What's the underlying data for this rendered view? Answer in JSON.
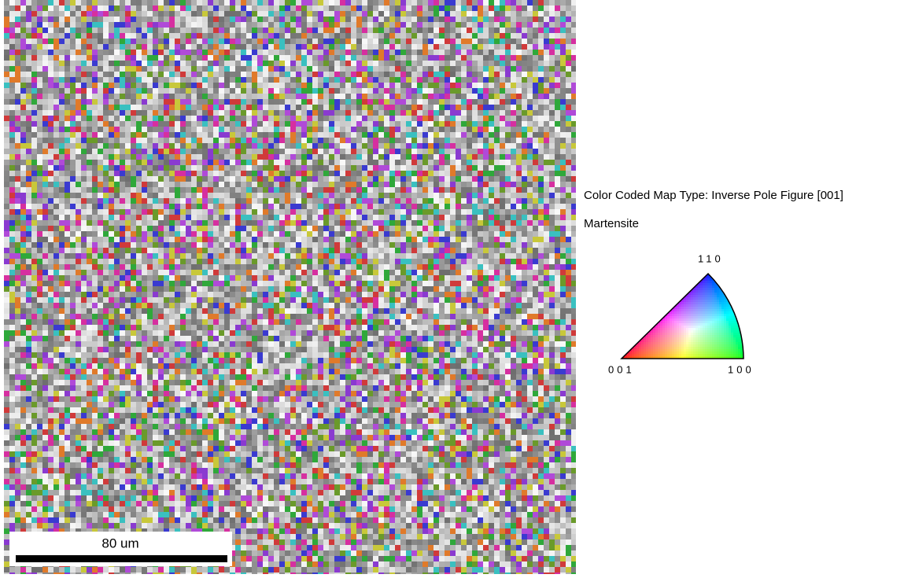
{
  "map": {
    "scale_bar_label": "80 um"
  },
  "legend": {
    "map_type": "Color Coded Map Type: Inverse Pole Figure [001]",
    "phase": "Martensite",
    "pole_001": "001",
    "pole_110": "110",
    "pole_100": "100"
  }
}
